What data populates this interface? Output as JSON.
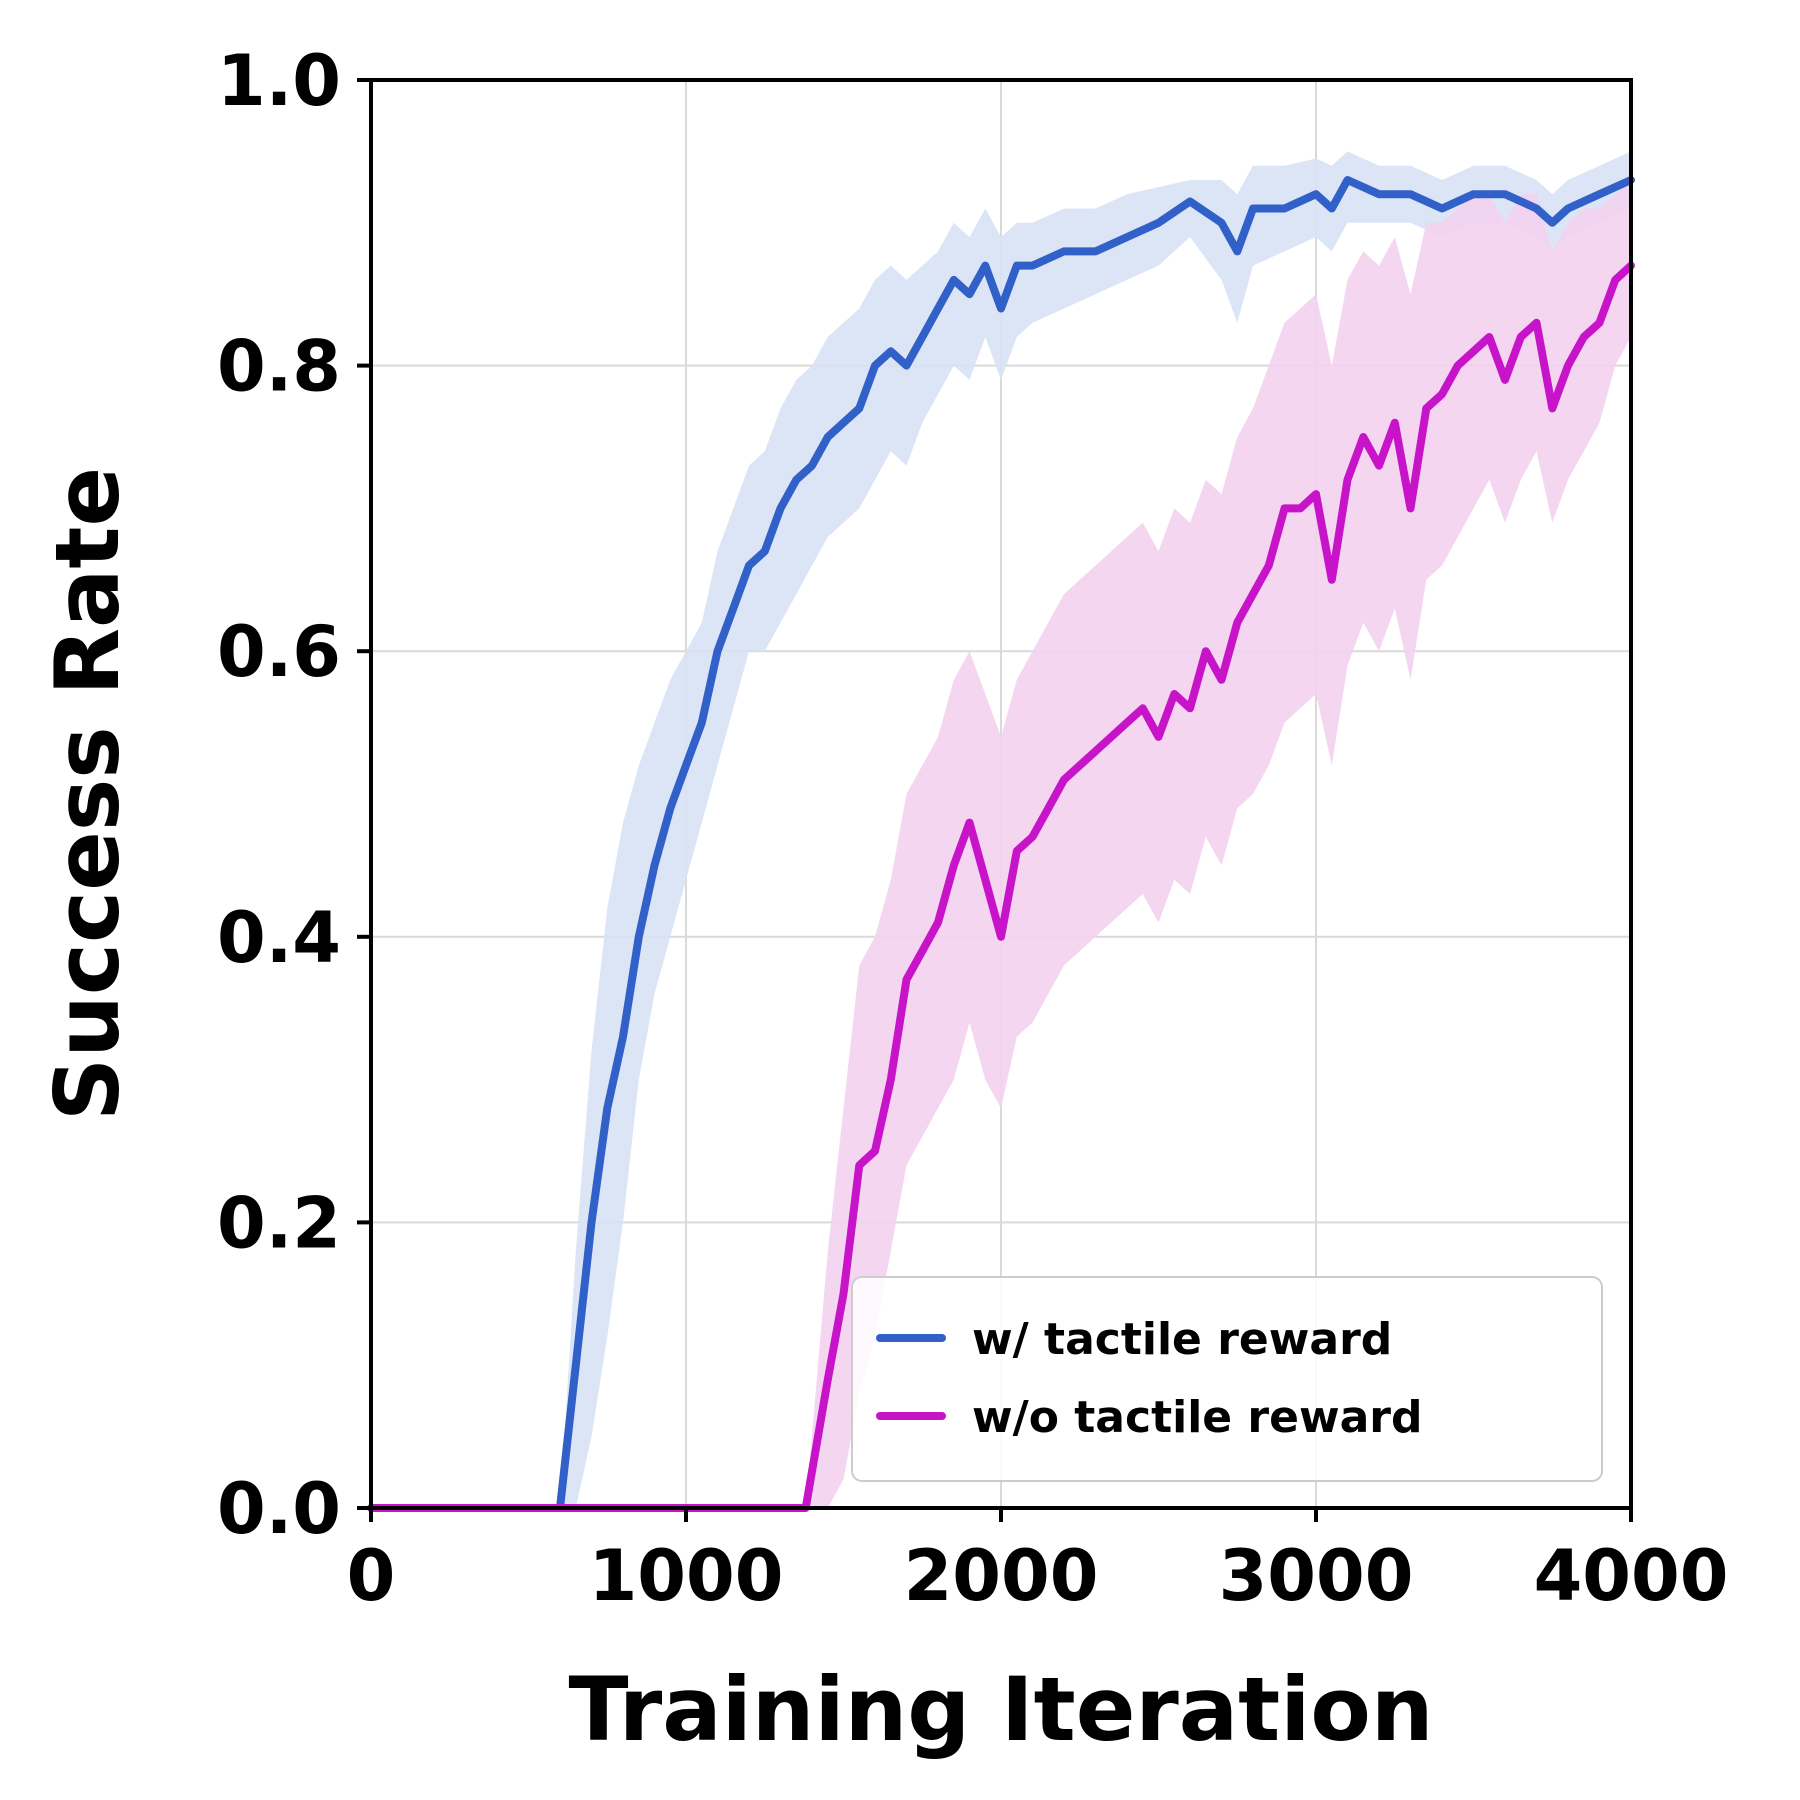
{
  "chart_data": {
    "type": "line",
    "xlabel": "Training Iteration",
    "ylabel": "Success Rate",
    "xlim": [
      0,
      4000
    ],
    "ylim": [
      0,
      1
    ],
    "xticks": [
      0,
      1000,
      2000,
      3000,
      4000
    ],
    "xtick_labels": [
      "0",
      "1000",
      "2000",
      "3000",
      "4000"
    ],
    "yticks": [
      0,
      0.2,
      0.4,
      0.6,
      0.8,
      1.0
    ],
    "ytick_labels": [
      "0.0",
      "0.2",
      "0.4",
      "0.6",
      "0.8",
      "1.0"
    ],
    "grid": true,
    "legend_position": "lower-right",
    "series": [
      {
        "name": "w/ tactile reward",
        "color": "#3060c8",
        "band_color": "#d8e2f4",
        "x": [
          0,
          500,
          600,
          650,
          700,
          750,
          800,
          850,
          900,
          950,
          1000,
          1050,
          1100,
          1150,
          1200,
          1250,
          1300,
          1350,
          1400,
          1450,
          1500,
          1550,
          1600,
          1650,
          1700,
          1750,
          1800,
          1850,
          1900,
          1950,
          2000,
          2050,
          2100,
          2200,
          2300,
          2400,
          2500,
          2600,
          2700,
          2750,
          2800,
          2900,
          3000,
          3050,
          3100,
          3200,
          3300,
          3400,
          3500,
          3600,
          3700,
          3750,
          3800,
          3900,
          4000
        ],
        "y": [
          0,
          0,
          0,
          0.1,
          0.2,
          0.28,
          0.33,
          0.4,
          0.45,
          0.49,
          0.52,
          0.55,
          0.6,
          0.63,
          0.66,
          0.67,
          0.7,
          0.72,
          0.73,
          0.75,
          0.76,
          0.77,
          0.8,
          0.81,
          0.8,
          0.82,
          0.84,
          0.86,
          0.85,
          0.87,
          0.84,
          0.87,
          0.87,
          0.88,
          0.88,
          0.89,
          0.9,
          0.915,
          0.9,
          0.88,
          0.91,
          0.91,
          0.92,
          0.91,
          0.93,
          0.92,
          0.92,
          0.91,
          0.92,
          0.92,
          0.91,
          0.9,
          0.91,
          0.92,
          0.93
        ],
        "lower": [
          0,
          0,
          0,
          0,
          0.05,
          0.12,
          0.2,
          0.3,
          0.36,
          0.4,
          0.44,
          0.48,
          0.52,
          0.56,
          0.6,
          0.6,
          0.62,
          0.64,
          0.66,
          0.68,
          0.69,
          0.7,
          0.72,
          0.74,
          0.73,
          0.76,
          0.78,
          0.8,
          0.79,
          0.82,
          0.79,
          0.82,
          0.83,
          0.84,
          0.85,
          0.86,
          0.87,
          0.89,
          0.86,
          0.83,
          0.87,
          0.88,
          0.89,
          0.88,
          0.9,
          0.9,
          0.9,
          0.89,
          0.9,
          0.9,
          0.89,
          0.88,
          0.89,
          0.9,
          0.91
        ],
        "upper": [
          0,
          0,
          0,
          0.18,
          0.32,
          0.42,
          0.48,
          0.52,
          0.55,
          0.58,
          0.6,
          0.62,
          0.67,
          0.7,
          0.73,
          0.74,
          0.77,
          0.79,
          0.8,
          0.82,
          0.83,
          0.84,
          0.86,
          0.87,
          0.86,
          0.87,
          0.88,
          0.9,
          0.89,
          0.91,
          0.89,
          0.9,
          0.9,
          0.91,
          0.91,
          0.92,
          0.925,
          0.93,
          0.93,
          0.92,
          0.94,
          0.94,
          0.945,
          0.94,
          0.95,
          0.94,
          0.94,
          0.93,
          0.94,
          0.94,
          0.93,
          0.92,
          0.93,
          0.94,
          0.95
        ]
      },
      {
        "name": "w/o tactile reward",
        "color": "#c814c8",
        "band_color": "#f3d2f0",
        "x": [
          0,
          1300,
          1380,
          1450,
          1500,
          1550,
          1600,
          1650,
          1700,
          1750,
          1800,
          1850,
          1900,
          1950,
          2000,
          2050,
          2100,
          2150,
          2200,
          2300,
          2400,
          2450,
          2500,
          2550,
          2600,
          2650,
          2700,
          2750,
          2800,
          2850,
          2900,
          2950,
          3000,
          3050,
          3100,
          3150,
          3200,
          3250,
          3300,
          3350,
          3400,
          3450,
          3500,
          3550,
          3600,
          3650,
          3700,
          3750,
          3800,
          3850,
          3900,
          3950,
          4000
        ],
        "y": [
          0,
          0,
          0,
          0.09,
          0.15,
          0.24,
          0.25,
          0.3,
          0.37,
          0.39,
          0.41,
          0.45,
          0.48,
          0.44,
          0.4,
          0.46,
          0.47,
          0.49,
          0.51,
          0.53,
          0.55,
          0.56,
          0.54,
          0.57,
          0.56,
          0.6,
          0.58,
          0.62,
          0.64,
          0.66,
          0.7,
          0.7,
          0.71,
          0.65,
          0.72,
          0.75,
          0.73,
          0.76,
          0.7,
          0.77,
          0.78,
          0.8,
          0.81,
          0.82,
          0.79,
          0.82,
          0.83,
          0.77,
          0.8,
          0.82,
          0.83,
          0.86,
          0.87
        ],
        "lower": [
          0,
          0,
          0,
          0,
          0.02,
          0.08,
          0.12,
          0.18,
          0.24,
          0.26,
          0.28,
          0.3,
          0.34,
          0.3,
          0.28,
          0.33,
          0.34,
          0.36,
          0.38,
          0.4,
          0.42,
          0.43,
          0.41,
          0.44,
          0.43,
          0.47,
          0.45,
          0.49,
          0.5,
          0.52,
          0.55,
          0.56,
          0.57,
          0.52,
          0.59,
          0.62,
          0.6,
          0.63,
          0.58,
          0.65,
          0.66,
          0.68,
          0.7,
          0.72,
          0.69,
          0.72,
          0.74,
          0.69,
          0.72,
          0.74,
          0.76,
          0.8,
          0.82
        ],
        "upper": [
          0,
          0,
          0,
          0.18,
          0.28,
          0.38,
          0.4,
          0.44,
          0.5,
          0.52,
          0.54,
          0.58,
          0.6,
          0.57,
          0.54,
          0.58,
          0.6,
          0.62,
          0.64,
          0.66,
          0.68,
          0.69,
          0.67,
          0.7,
          0.69,
          0.72,
          0.71,
          0.75,
          0.77,
          0.8,
          0.83,
          0.84,
          0.85,
          0.8,
          0.86,
          0.88,
          0.87,
          0.89,
          0.85,
          0.9,
          0.9,
          0.91,
          0.92,
          0.92,
          0.9,
          0.92,
          0.92,
          0.88,
          0.9,
          0.91,
          0.91,
          0.92,
          0.93
        ]
      }
    ]
  }
}
